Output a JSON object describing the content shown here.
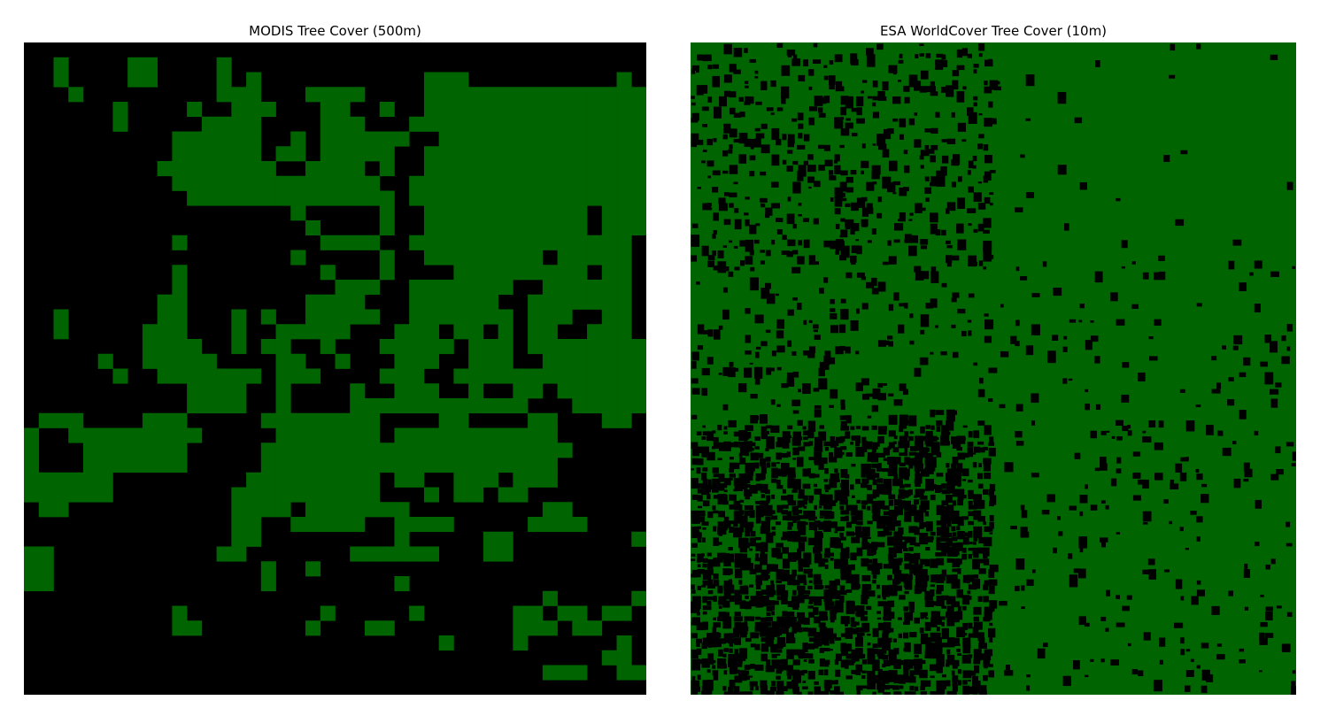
{
  "colors": {
    "tree": "#006400",
    "non_tree": "#000000",
    "background": "#ffffff"
  },
  "chart_data": [
    {
      "type": "heatmap",
      "title": "MODIS Tree Cover (500m)",
      "grid": false,
      "legend": "none",
      "classes": [
        "non-tree",
        "tree"
      ],
      "grid_size": [
        44,
        42
      ],
      "rows": [
        "..........................................",
        "..#....##....#............................",
        "..#....##....#.#...........###..........#.",
        "...#.........###...####....###############",
        "......#....#..###...##..#..###############",
        "......#.....####....###...################",
        "..........######..#.######..##############",
        "..........######.##.#####..###############",
        ".........########..####.#..###############",
        "..........##############..################",
        "...........##############.################",
        "..................#.....#..###########.###",
        "...................#....#..###########.###",
        "..........#.........####..###############.",
        "..................#.....#..########.#####.",
        "..........#.........#...#....#########.##.",
        "..........#..........###..#######..######.",
        ".........##........####...######..#######.",
        "..#......##...#.#..#####..#######.###..##.",
        "..#.....###...#..#####...###.##.#.##..###.",
        "........####..#.##..#...#####.###.########",
        ".....#..#####....##..#...###..###..#######",
        "......#..#######.###....###..##############",
        "...........####..#....#..###..#..##.#######",
        "...........####..#....############...######",
        ".###....###.....########....##....##...##..",
        "#..#########.....#######.###########.......",
        "#...#######.....#####################.......",
        "#...#######.....####################.......",
        "######.........#########.##..###.###.......",
        "######........##########...#.##.##.......",
        ".##...........####.#######.........##.....",
        "..............##..#####..####.....####....",
        "..............##.........#.....##........#",
        "##...........##.......######...##.........#",
        "##..............#..#.........................",
        "##..............#........#.......................",
        "...................................#.....###",
        "..........#.........#.....#......##.##.##...",
        "..........##.......#...##........###.##.....",
        "............................#....#......#..",
        ".......................................##...",
        "...................................###..###",
        "..........................................."
      ]
    },
    {
      "type": "heatmap",
      "title": "ESA WorldCover Tree Cover (10m)",
      "grid": false,
      "legend": "none",
      "classes": [
        "non-tree",
        "tree"
      ],
      "dominant_class": "tree",
      "non_tree_fraction_by_region": {
        "top_left": 0.18,
        "top_right": 0.01,
        "middle_left": 0.12,
        "middle_right": 0.04,
        "bottom_left": 0.45,
        "bottom_right": 0.06
      }
    }
  ]
}
